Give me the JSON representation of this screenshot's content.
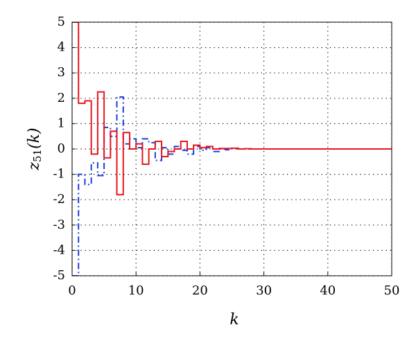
{
  "chart_data": {
    "type": "stairs",
    "xlabel": "k",
    "ylabel": {
      "base": "z",
      "subscript": "51",
      "suffix": "(k)"
    },
    "x": [
      0,
      1,
      2,
      3,
      4,
      5,
      6,
      7,
      8,
      9,
      10,
      11,
      12,
      13,
      14,
      15,
      16,
      17,
      18,
      19,
      20,
      21,
      22,
      23,
      24,
      25,
      26,
      27,
      28,
      29,
      30,
      31,
      32,
      33,
      34,
      35,
      36,
      37,
      38,
      39,
      40,
      41,
      42,
      43,
      44,
      45,
      46,
      47,
      48,
      49,
      50
    ],
    "series": [
      {
        "color": "#e8141e",
        "dash": "solid",
        "values": [
          5,
          1.8,
          1.9,
          -0.2,
          2.25,
          -0.35,
          0.7,
          -1.8,
          0.65,
          0,
          0.2,
          -0.6,
          0,
          0.3,
          -0.3,
          -0.1,
          0,
          0.3,
          0,
          0.15,
          0.05,
          0.1,
          0,
          0.02,
          0.02,
          0.03,
          0,
          0.01,
          0,
          0,
          0,
          0,
          0,
          0,
          0,
          0,
          0,
          0,
          0,
          0,
          0,
          0,
          0,
          0,
          0,
          0,
          0,
          0,
          0,
          0,
          0
        ]
      },
      {
        "color": "#1a3fd6",
        "dash": "dashdot",
        "values": [
          -5,
          -1,
          -1.4,
          -0.55,
          -1.05,
          0.85,
          0.5,
          2.05,
          0.2,
          0.4,
          0.05,
          0.4,
          0.25,
          -0.45,
          0.05,
          -0.2,
          0.1,
          -0.05,
          -0.2,
          0.1,
          -0.05,
          0.05,
          -0.1,
          0,
          -0.03,
          0.01,
          0,
          0,
          0,
          0,
          0,
          0,
          0,
          0,
          0,
          0,
          0,
          0,
          0,
          0,
          0,
          0,
          0,
          0,
          0,
          0,
          0,
          0,
          0,
          0,
          0
        ]
      }
    ],
    "xlim": [
      0,
      50
    ],
    "ylim": [
      -5,
      5
    ],
    "xticks": [
      0,
      10,
      20,
      30,
      40,
      50
    ],
    "yticks": [
      -5,
      -4,
      -3,
      -2,
      -1,
      0,
      1,
      2,
      3,
      4,
      5
    ],
    "grid": true
  }
}
